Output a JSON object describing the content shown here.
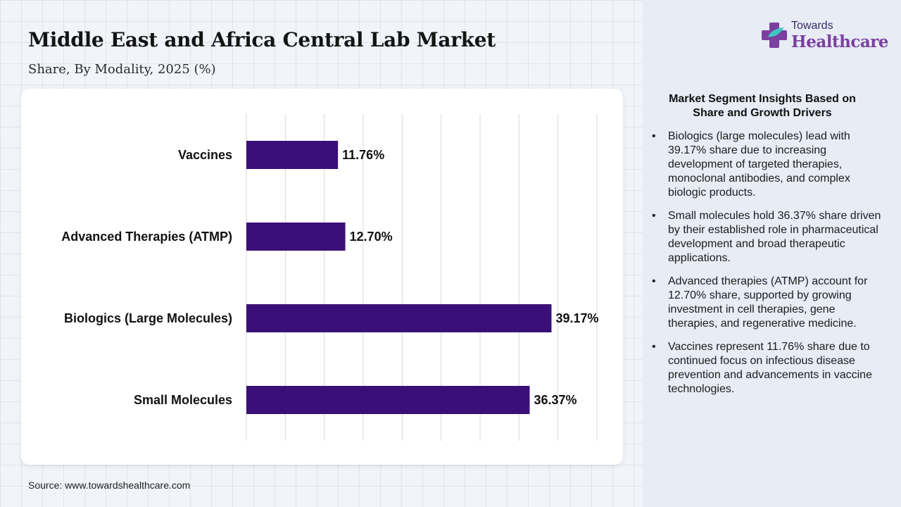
{
  "header": {
    "title": "Middle East and Africa Central Lab Market",
    "subtitle": "Share, By Modality, 2025 (%)"
  },
  "logo": {
    "top_text": "Towards",
    "main_text": "Healthcare",
    "brand_color": "#7b3fa0"
  },
  "chart_data": {
    "type": "bar",
    "orientation": "horizontal",
    "categories": [
      "Vaccines",
      "Advanced Therapies (ATMP)",
      "Biologics (Large Molecules)",
      "Small Molecules"
    ],
    "values": [
      11.76,
      12.7,
      39.17,
      36.37
    ],
    "value_labels": [
      "11.76%",
      "12.70%",
      "39.17%",
      "36.37%"
    ],
    "xlim": [
      0,
      45
    ],
    "grid": true,
    "bar_color": "#3a0f78"
  },
  "footer": {
    "source": "Source: www.towardshealthcare.com"
  },
  "insights": {
    "title": "Market Segment Insights Based on Share and Growth Drivers",
    "bullet": "•",
    "items": [
      "Biologics (large molecules) lead with 39.17% share due to increasing development of targeted therapies, monoclonal antibodies, and complex biologic products.",
      "Small molecules hold 36.37% share driven by their established role in pharmaceutical development and broad therapeutic applications.",
      "Advanced therapies (ATMP) account for 12.70% share, supported by growing investment in cell therapies, gene therapies, and regenerative medicine.",
      "Vaccines represent 11.76% share due to continued focus on infectious disease prevention and advancements in vaccine technologies."
    ]
  }
}
